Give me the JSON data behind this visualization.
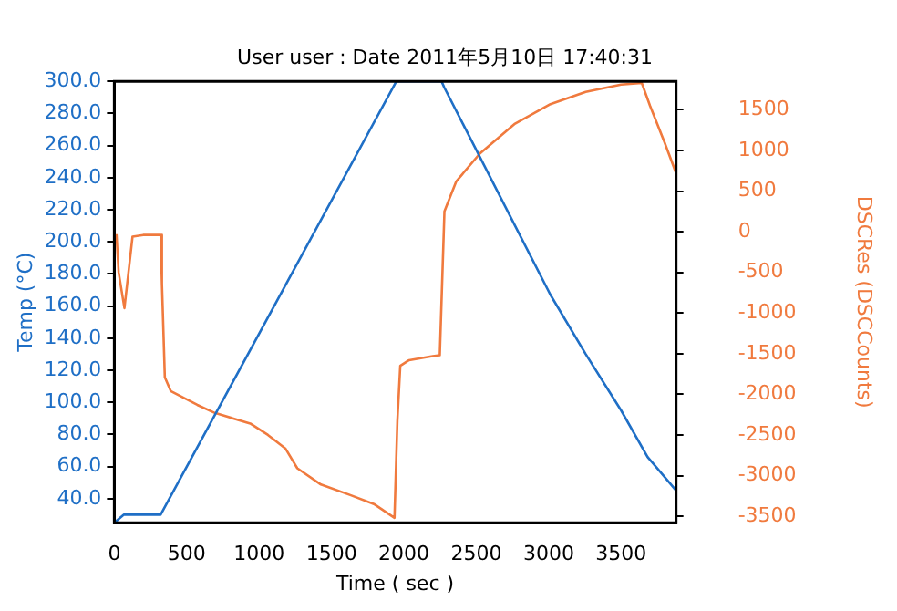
{
  "chart_data": {
    "type": "line",
    "title": "User user : Date 2011年5月10日 17:40:31",
    "xlabel": "Time ( sec )",
    "ylabel": "Temp (°C)",
    "y2label": "DSCRes (DSCCounts)",
    "xlim": [
      0,
      3880
    ],
    "xticks": [
      0,
      500,
      1000,
      1500,
      2000,
      2500,
      3000,
      3500
    ],
    "ylim": [
      25,
      300
    ],
    "yticks": [
      {
        "value": 40,
        "label": "40.0"
      },
      {
        "value": 60,
        "label": "60.0"
      },
      {
        "value": 80,
        "label": "80.0"
      },
      {
        "value": 100,
        "label": "100.0"
      },
      {
        "value": 120,
        "label": "120.0"
      },
      {
        "value": 140,
        "label": "140.0"
      },
      {
        "value": 160,
        "label": "160.0"
      },
      {
        "value": 180,
        "label": "180.0"
      },
      {
        "value": 200,
        "label": "200.0"
      },
      {
        "value": 220,
        "label": "220.0"
      },
      {
        "value": 240,
        "label": "240.0"
      },
      {
        "value": 260,
        "label": "260.0"
      },
      {
        "value": 280,
        "label": "280.0"
      },
      {
        "value": 300,
        "label": "300.0"
      }
    ],
    "y2lim": [
      -3580,
      1850
    ],
    "y2ticks": [
      -3500,
      -3000,
      -2500,
      -2000,
      -1500,
      -1000,
      -500,
      0,
      500,
      1000,
      1500
    ],
    "grid": false,
    "legend": false,
    "marker": "none",
    "line_style": "solid",
    "series": [
      {
        "color": "#1f6fc6",
        "x": [
          0,
          65,
          320,
          1948,
          2260,
          2280,
          3012,
          3256,
          3500,
          3683,
          3880
        ],
        "values": [
          25,
          30,
          30,
          300,
          300,
          296,
          167,
          130,
          95,
          66,
          45
        ]
      },
      {
        "color": "#f07a3e",
        "axis": "y2",
        "x": [
          15,
          30,
          70,
          126,
          200,
          320,
          329,
          349,
          390,
          573,
          695,
          939,
          1061,
          1183,
          1264,
          1427,
          1630,
          1793,
          1935,
          1955,
          1975,
          2036,
          2199,
          2248,
          2280,
          2362,
          2524,
          2768,
          3012,
          3256,
          3500,
          3643,
          3700,
          3800,
          3880
        ],
        "values": [
          -30,
          -500,
          -940,
          -60,
          -40,
          -40,
          -640,
          -1790,
          -1960,
          -2130,
          -2230,
          -2360,
          -2500,
          -2670,
          -2910,
          -3110,
          -3240,
          -3350,
          -3520,
          -2330,
          -1650,
          -1580,
          -1530,
          -1520,
          250,
          620,
          960,
          1330,
          1570,
          1720,
          1810,
          1830,
          1550,
          1100,
          720
        ]
      }
    ]
  }
}
